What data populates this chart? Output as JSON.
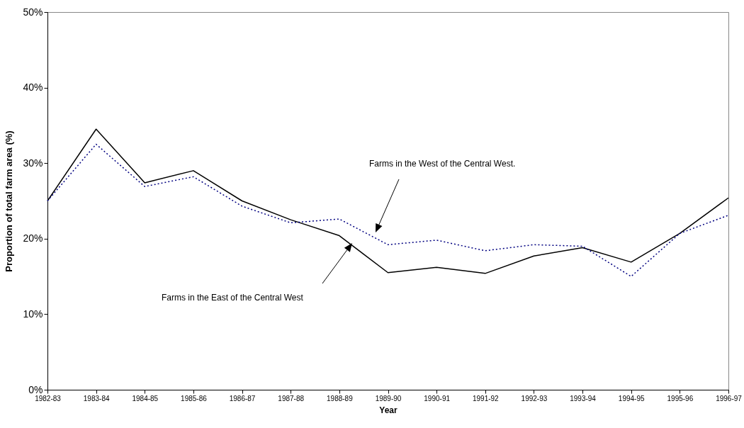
{
  "chart_data": {
    "type": "line",
    "xlabel": "Year",
    "ylabel": "Proportion of total farm area (%)",
    "categories": [
      "1982-83",
      "1983-84",
      "1984-85",
      "1985-86",
      "1986-87",
      "1987-88",
      "1988-89",
      "1989-90",
      "1990-91",
      "1991-92",
      "1992-93",
      "1993-94",
      "1994-95",
      "1995-96",
      "1996-97"
    ],
    "series": [
      {
        "color": "#000000",
        "line_style": "solid",
        "values": [
          25.0,
          34.5,
          27.4,
          29.0,
          25.0,
          22.5,
          20.4,
          15.5,
          16.2,
          15.4,
          17.7,
          18.8,
          16.9,
          20.7,
          25.4
        ]
      },
      {
        "color": "#000080",
        "line_style": "dotted",
        "values": [
          25.0,
          32.5,
          26.9,
          28.2,
          24.3,
          22.1,
          22.6,
          19.2,
          19.8,
          18.4,
          19.2,
          19.0,
          15.0,
          20.7,
          23.1
        ]
      }
    ],
    "ylim": [
      0,
      50
    ],
    "yticks": [
      {
        "value": 0,
        "label": "0%"
      },
      {
        "value": 10,
        "label": "10%"
      },
      {
        "value": 20,
        "label": "20%"
      },
      {
        "value": 30,
        "label": "30%"
      },
      {
        "value": 40,
        "label": "40%"
      },
      {
        "value": 50,
        "label": "50%"
      }
    ],
    "annotations": [
      "Farms in the East of the Central West",
      "Farms in the West of the Central West."
    ],
    "grid": false,
    "marker": "none"
  }
}
